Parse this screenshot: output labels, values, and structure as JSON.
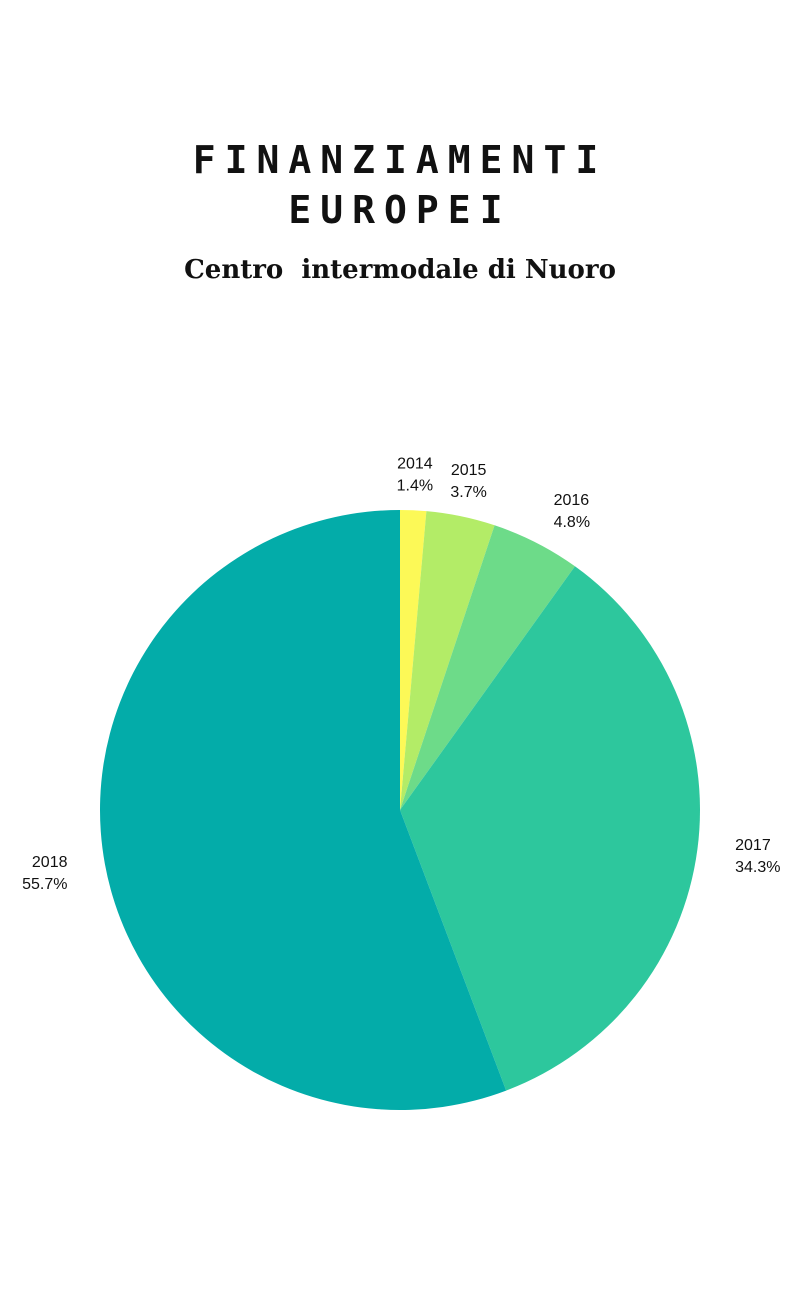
{
  "header": {
    "title_line_1": "FINANZIAMENTI",
    "title_line_2": "EUROPEI",
    "subtitle": "Centro  intermodale di Nuoro"
  },
  "chart_data": {
    "type": "pie",
    "title": "FINANZIAMENTI EUROPEI",
    "subtitle": "Centro  intermodale di Nuoro",
    "start_angle": "top",
    "direction": "clockwise",
    "legend": "none",
    "slices": [
      {
        "label": "2014",
        "percent_label": "1.4%",
        "value": 1.4,
        "color": "#fcf957"
      },
      {
        "label": "2015",
        "percent_label": "3.7%",
        "value": 3.7,
        "color": "#b3ec67"
      },
      {
        "label": "2016",
        "percent_label": "4.8%",
        "value": 4.8,
        "color": "#6ddb89"
      },
      {
        "label": "2017",
        "percent_label": "34.3%",
        "value": 34.3,
        "color": "#2dc79d"
      },
      {
        "label": "2018",
        "percent_label": "55.7%",
        "value": 55.7,
        "color": "#03aca9"
      }
    ]
  }
}
